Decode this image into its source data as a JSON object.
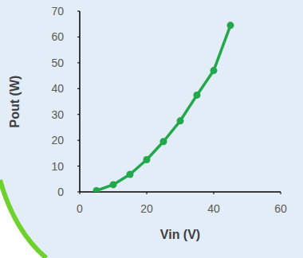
{
  "chart_data": {
    "type": "line",
    "x_label": "Vin (V)",
    "y_label": "Pout (W)",
    "x": [
      5,
      10,
      15,
      20,
      25,
      30,
      35,
      40,
      45
    ],
    "series": [
      {
        "name": "Pout",
        "color": "#22a84a",
        "marker": "circle",
        "values": [
          0.5,
          2.8,
          6.8,
          12.5,
          19.5,
          27.5,
          37.5,
          47,
          64.5
        ]
      }
    ],
    "xlim": [
      0,
      60
    ],
    "xticks": [
      0,
      20,
      40,
      60
    ],
    "ylim": [
      0,
      70
    ],
    "yticks": [
      0,
      10,
      20,
      30,
      40,
      50,
      60,
      70
    ],
    "grid": false
  }
}
